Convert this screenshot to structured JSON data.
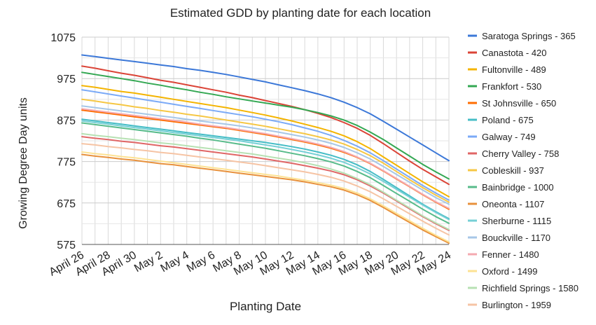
{
  "chart_data": {
    "type": "line",
    "title": "Estimated GDD by planting date for each location",
    "xlabel": "Planting Date",
    "ylabel": "Growing Degree Day units",
    "ylim": [
      575,
      1075
    ],
    "yticks": [
      575,
      675,
      775,
      875,
      975,
      1075
    ],
    "categories": [
      "April 26",
      "April 27",
      "April 28",
      "April 29",
      "April 30",
      "May 1",
      "May 2",
      "May 3",
      "May 4",
      "May 5",
      "May 6",
      "May 7",
      "May 8",
      "May 9",
      "May 10",
      "May 11",
      "May 12",
      "May 13",
      "May 14",
      "May 15",
      "May 16",
      "May 17",
      "May 18",
      "May 19",
      "May 20",
      "May 21",
      "May 22",
      "May 23",
      "May 24"
    ],
    "xtick_labels": [
      "April 26",
      "April 28",
      "April 30",
      "May 2",
      "May 4",
      "May 6",
      "May 8",
      "May 10",
      "May 12",
      "May 14",
      "May 16",
      "May 18",
      "May 20",
      "May 22",
      "May 24"
    ],
    "grid": true,
    "legend_position": "right",
    "series": [
      {
        "name": "Saratoga Springs - 365",
        "color": "#3c78d8",
        "values": [
          1032,
          1028,
          1024,
          1020,
          1016,
          1012,
          1008,
          1004,
          999,
          995,
          990,
          985,
          979,
          973,
          967,
          960,
          953,
          946,
          938,
          929,
          918,
          905,
          890,
          872,
          853,
          834,
          815,
          796,
          777
        ]
      },
      {
        "name": "Canastota - 420",
        "color": "#db4437",
        "values": [
          1005,
          1000,
          994,
          988,
          983,
          977,
          971,
          966,
          960,
          954,
          948,
          942,
          935,
          929,
          922,
          915,
          908,
          900,
          891,
          881,
          869,
          855,
          838,
          818,
          797,
          776,
          756,
          738,
          720
        ]
      },
      {
        "name": "Fultonville - 489",
        "color": "#f4b400",
        "values": [
          958,
          954,
          949,
          944,
          940,
          935,
          930,
          925,
          920,
          915,
          910,
          905,
          899,
          893,
          887,
          880,
          873,
          865,
          857,
          848,
          837,
          823,
          806,
          786,
          766,
          746,
          726,
          708,
          690
        ]
      },
      {
        "name": "Frankfort - 530",
        "color": "#34a853",
        "values": [
          990,
          985,
          980,
          975,
          970,
          964,
          959,
          953,
          948,
          942,
          937,
          931,
          926,
          921,
          916,
          911,
          906,
          900,
          893,
          885,
          875,
          862,
          846,
          828,
          808,
          788,
          768,
          750,
          733
        ]
      },
      {
        "name": "St Johnsville - 650",
        "color": "#ff6d01",
        "values": [
          899,
          895,
          891,
          887,
          883,
          879,
          875,
          871,
          867,
          863,
          859,
          855,
          850,
          845,
          840,
          834,
          828,
          822,
          815,
          807,
          797,
          785,
          770,
          752,
          733,
          714,
          695,
          677,
          660
        ]
      },
      {
        "name": "Poland - 675",
        "color": "#46bdc6",
        "values": [
          877,
          873,
          869,
          865,
          861,
          857,
          853,
          849,
          845,
          841,
          837,
          833,
          829,
          825,
          821,
          816,
          811,
          805,
          798,
          790,
          780,
          767,
          751,
          732,
          712,
          692,
          672,
          654,
          637
        ]
      },
      {
        "name": "Galway - 749",
        "color": "#7baaf7",
        "values": [
          948,
          943,
          938,
          933,
          928,
          923,
          918,
          913,
          908,
          903,
          898,
          893,
          888,
          883,
          877,
          871,
          864,
          856,
          848,
          838,
          826,
          812,
          796,
          777,
          757,
          737,
          717,
          699,
          682
        ]
      },
      {
        "name": "Cherry Valley - 758",
        "color": "#e06666",
        "values": [
          835,
          831,
          828,
          824,
          821,
          817,
          813,
          810,
          806,
          802,
          798,
          794,
          790,
          786,
          781,
          776,
          771,
          765,
          759,
          752,
          743,
          731,
          716,
          699,
          680,
          661,
          642,
          625,
          609
        ]
      },
      {
        "name": "Cobleskill - 937",
        "color": "#f6c744",
        "values": [
          925,
          921,
          916,
          912,
          907,
          903,
          898,
          894,
          889,
          885,
          880,
          875,
          870,
          865,
          860,
          854,
          848,
          842,
          835,
          827,
          817,
          804,
          789,
          771,
          751,
          731,
          712,
          694,
          677
        ]
      },
      {
        "name": "Bainbridge - 1000",
        "color": "#57bb8a",
        "values": [
          868,
          864,
          860,
          856,
          852,
          848,
          844,
          840,
          836,
          831,
          827,
          822,
          817,
          812,
          807,
          801,
          795,
          789,
          782,
          774,
          764,
          751,
          736,
          717,
          698,
          679,
          660,
          642,
          626
        ]
      },
      {
        "name": "Oneonta - 1107",
        "color": "#e8913c",
        "values": [
          792,
          788,
          785,
          781,
          778,
          774,
          770,
          767,
          763,
          759,
          755,
          751,
          747,
          743,
          739,
          735,
          731,
          726,
          720,
          714,
          706,
          695,
          681,
          664,
          646,
          628,
          610,
          594,
          578
        ]
      },
      {
        "name": "Sherburne - 1115",
        "color": "#76d0d6",
        "values": [
          873,
          869,
          865,
          861,
          857,
          853,
          849,
          845,
          841,
          837,
          833,
          829,
          825,
          820,
          815,
          810,
          804,
          798,
          791,
          783,
          773,
          760,
          745,
          727,
          708,
          689,
          670,
          652,
          635
        ]
      },
      {
        "name": "Bouckville - 1170",
        "color": "#a7c7e7",
        "values": [
          909,
          905,
          901,
          897,
          893,
          889,
          885,
          881,
          877,
          873,
          869,
          865,
          861,
          856,
          851,
          846,
          840,
          834,
          827,
          819,
          809,
          796,
          781,
          763,
          744,
          725,
          706,
          688,
          672
        ]
      },
      {
        "name": "Fenner - 1480",
        "color": "#f4a9b0",
        "values": [
          902,
          898,
          894,
          890,
          886,
          882,
          878,
          874,
          870,
          865,
          861,
          857,
          852,
          847,
          842,
          836,
          830,
          824,
          817,
          809,
          799,
          786,
          771,
          753,
          734,
          715,
          696,
          678,
          662
        ]
      },
      {
        "name": "Oxford - 1499",
        "color": "#fde293",
        "values": [
          798,
          794,
          791,
          787,
          784,
          780,
          776,
          772,
          768,
          764,
          760,
          756,
          752,
          748,
          744,
          740,
          735,
          730,
          724,
          718,
          710,
          699,
          685,
          668,
          650,
          632,
          614,
          597,
          581
        ]
      },
      {
        "name": "Richfield Springs - 1580",
        "color": "#b7e1b3",
        "values": [
          842,
          838,
          835,
          831,
          828,
          824,
          820,
          817,
          813,
          809,
          805,
          801,
          797,
          793,
          788,
          783,
          778,
          772,
          765,
          757,
          747,
          734,
          719,
          701,
          682,
          663,
          644,
          627,
          611
        ]
      },
      {
        "name": "Burlington - 1959",
        "color": "#f6c4a4",
        "values": [
          818,
          815,
          811,
          808,
          804,
          801,
          797,
          794,
          790,
          786,
          782,
          778,
          774,
          770,
          765,
          760,
          755,
          750,
          744,
          737,
          728,
          716,
          702,
          685,
          667,
          649,
          631,
          614,
          598
        ]
      }
    ]
  }
}
